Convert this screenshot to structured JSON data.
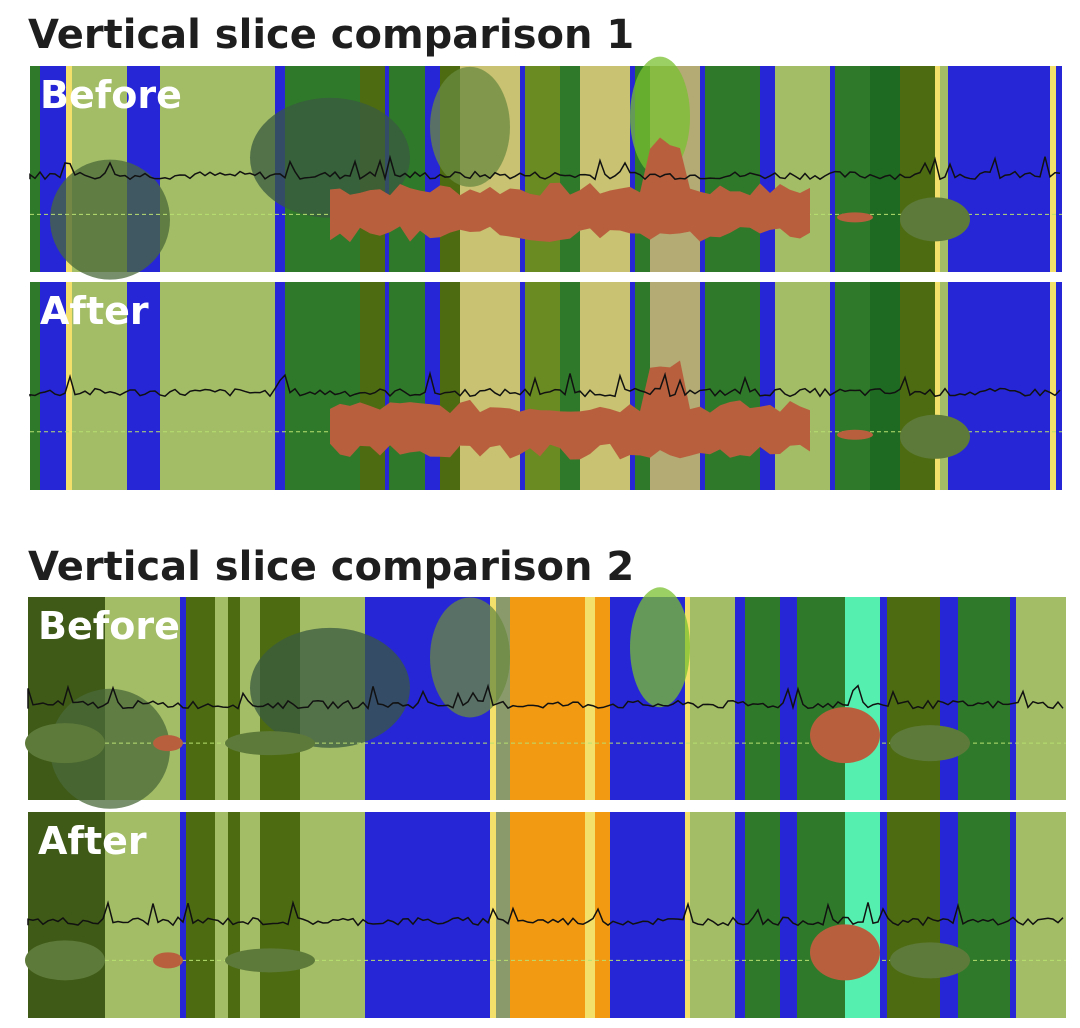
{
  "sections": [
    {
      "title": "Vertical slice comparison 1",
      "panels": [
        {
          "label": "Before"
        },
        {
          "label": "After"
        }
      ]
    },
    {
      "title": "Vertical slice comparison 2",
      "panels": [
        {
          "label": "Before"
        },
        {
          "label": "After"
        }
      ]
    }
  ]
}
